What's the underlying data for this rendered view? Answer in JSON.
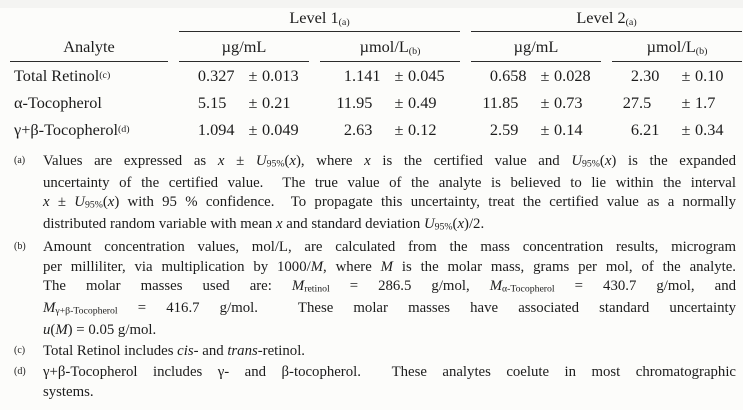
{
  "accent_colors": {
    "text": "#1c1c1c",
    "rule": "#2b2b2b",
    "background": "#fcfcfa"
  },
  "table": {
    "plus_minus": "±",
    "analyte_header": "Analyte",
    "col_groups": [
      {
        "label": [
          {
            "t": "Level 1"
          },
          {
            "t": "(a)",
            "s": "sup"
          }
        ]
      },
      {
        "label": [
          {
            "t": "Level 2"
          },
          {
            "t": "(a)",
            "s": "sup"
          }
        ]
      }
    ],
    "sub_headers": [
      [
        {
          "t": "µg/mL"
        }
      ],
      [
        {
          "t": "µmol/L"
        },
        {
          "t": "(b)",
          "s": "sup"
        }
      ],
      [
        {
          "t": "µg/mL"
        }
      ],
      [
        {
          "t": "µmol/L"
        },
        {
          "t": "(b)",
          "s": "sup"
        }
      ]
    ],
    "rows": [
      {
        "analyte": [
          {
            "t": "Total Retinol"
          },
          {
            "t": "(c)",
            "s": "sup"
          }
        ],
        "values": [
          {
            "v": "0.327",
            "u": "0.013"
          },
          {
            "v": "1.141",
            "u": "0.045"
          },
          {
            "v": "0.658",
            "u": "0.028"
          },
          {
            "v": "2.30",
            "u": "0.10"
          }
        ]
      },
      {
        "analyte": [
          {
            "t": "α-Tocopherol"
          }
        ],
        "values": [
          {
            "v": "5.15",
            "u": "0.21"
          },
          {
            "v": "11.95",
            "u": "0.49"
          },
          {
            "v": "11.85",
            "u": "0.73"
          },
          {
            "v": "27.5",
            "u": "1.7"
          }
        ]
      },
      {
        "analyte": [
          {
            "t": "γ+β-Tocopherol"
          },
          {
            "t": "(d)",
            "s": "sup"
          }
        ],
        "values": [
          {
            "v": "1.094",
            "u": "0.049"
          },
          {
            "v": "2.63",
            "u": "0.12"
          },
          {
            "v": "2.59",
            "u": "0.14"
          },
          {
            "v": "6.21",
            "u": "0.34"
          }
        ]
      }
    ]
  },
  "footnotes": [
    {
      "marker": "(a)",
      "lines": [
        [
          {
            "t": "Values are expressed as "
          },
          {
            "t": "x",
            "s": "i"
          },
          {
            "t": " ± "
          },
          {
            "t": "U",
            "s": "i"
          },
          {
            "t": "95%",
            "s": "sub"
          },
          {
            "t": "("
          },
          {
            "t": "x",
            "s": "i"
          },
          {
            "t": "), where "
          },
          {
            "t": "x",
            "s": "i"
          },
          {
            "t": " is the certified value and "
          },
          {
            "t": "U",
            "s": "i"
          },
          {
            "t": "95%",
            "s": "sub"
          },
          {
            "t": "("
          },
          {
            "t": "x",
            "s": "i"
          },
          {
            "t": ") is the expanded"
          }
        ],
        [
          {
            "t": "uncertainty of the certified value.  The true value of the analyte is believed to lie within the interval"
          }
        ],
        [
          {
            "t": "x",
            "s": "i"
          },
          {
            "t": " ± "
          },
          {
            "t": "U",
            "s": "i"
          },
          {
            "t": "95%",
            "s": "sub"
          },
          {
            "t": "("
          },
          {
            "t": "x",
            "s": "i"
          },
          {
            "t": ") with 95 % confidence.  To propagate this uncertainty, treat the certified value as a normally"
          }
        ],
        [
          {
            "t": "distributed random variable with mean "
          },
          {
            "t": "x",
            "s": "i"
          },
          {
            "t": " and standard deviation "
          },
          {
            "t": "U",
            "s": "i"
          },
          {
            "t": "95%",
            "s": "sub"
          },
          {
            "t": "("
          },
          {
            "t": "x",
            "s": "i"
          },
          {
            "t": ")/2."
          }
        ]
      ]
    },
    {
      "marker": "(b)",
      "lines": [
        [
          {
            "t": "Amount concentration values, mol/L, are calculated from the mass concentration results, microgram"
          }
        ],
        [
          {
            "t": "per milliliter, via multiplication by 1000/"
          },
          {
            "t": "M",
            "s": "i"
          },
          {
            "t": ", where "
          },
          {
            "t": "M",
            "s": "i"
          },
          {
            "t": " is the molar mass, grams per mol, of the analyte."
          }
        ],
        [
          {
            "t": "The molar masses used are: "
          },
          {
            "t": "M",
            "s": "i"
          },
          {
            "t": "retinol",
            "s": "sub"
          },
          {
            "t": " = 286.5 g/mol, "
          },
          {
            "t": "M",
            "s": "i"
          },
          {
            "t": "α-Tocopherol",
            "s": "sub"
          },
          {
            "t": " = 430.7 g/mol, and"
          }
        ],
        [
          {
            "t": "M",
            "s": "i"
          },
          {
            "t": "γ+β-Tocopherol",
            "s": "sub"
          },
          {
            "t": " = 416.7 g/mol.  These molar masses have associated standard uncertainty"
          }
        ],
        [
          {
            "t": "u",
            "s": "i"
          },
          {
            "t": "("
          },
          {
            "t": "M",
            "s": "i"
          },
          {
            "t": ") = 0.05 g/mol."
          }
        ]
      ]
    },
    {
      "marker": "(c)",
      "lines": [
        [
          {
            "t": "Total Retinol includes "
          },
          {
            "t": "cis-",
            "s": "i"
          },
          {
            "t": " and "
          },
          {
            "t": "trans",
            "s": "i"
          },
          {
            "t": "-retinol."
          }
        ]
      ]
    },
    {
      "marker": "(d)",
      "lines": [
        [
          {
            "t": "γ+β-Tocopherol includes γ- and β-tocopherol.  These analytes coelute in most chromatographic"
          }
        ],
        [
          {
            "t": "systems."
          }
        ]
      ]
    }
  ]
}
